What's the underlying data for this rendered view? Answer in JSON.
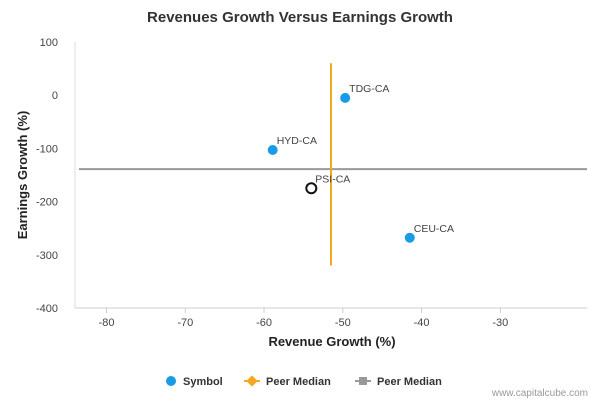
{
  "chart_data": {
    "type": "scatter",
    "title": "Revenues Growth Versus Earnings Growth",
    "xlabel": "Revenue Growth (%)",
    "ylabel": "Earnings Growth (%)",
    "xlim": [
      -84,
      -19
    ],
    "ylim": [
      -400,
      100
    ],
    "x_ticks": [
      -80,
      -70,
      -60,
      -50,
      -40,
      -30
    ],
    "y_ticks": [
      100,
      0,
      -100,
      -200,
      -300,
      -400
    ],
    "series": [
      {
        "name": "Symbol",
        "color": "#1a9be6",
        "points": [
          {
            "label": "TDG-CA",
            "x": -49.7,
            "y": -5
          },
          {
            "label": "HYD-CA",
            "x": -58.9,
            "y": -103
          },
          {
            "label": "CEU-CA",
            "x": -41.5,
            "y": -268
          }
        ]
      }
    ],
    "highlight": {
      "label": "PSI-CA",
      "x": -54.0,
      "y": -175
    },
    "peer_median_vertical": {
      "name": "Peer Median",
      "x": -51.5,
      "y_range": [
        60,
        -320
      ],
      "color": "#f5a623"
    },
    "peer_median_horizontal": {
      "name": "Peer Median",
      "y": -139,
      "color": "#999999"
    },
    "legend": {
      "placement": "bottom",
      "items": [
        "Symbol",
        "Peer Median",
        "Peer Median"
      ]
    },
    "grid": false
  },
  "watermark": "www.capitalcube.com"
}
